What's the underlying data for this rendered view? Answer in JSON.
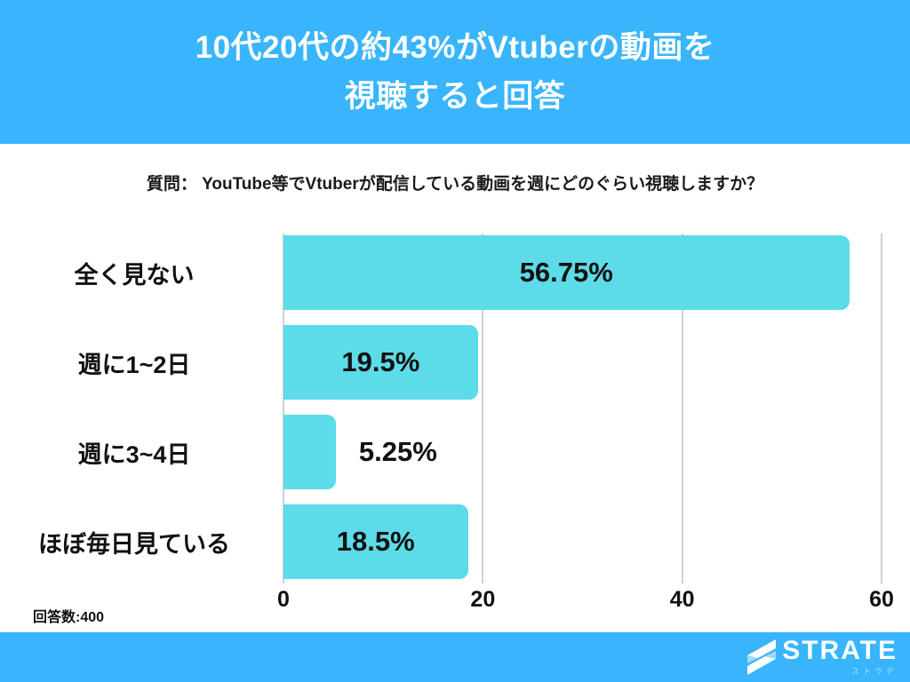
{
  "header": {
    "title_line1": "10代20代の約43%がVtuberの動画を",
    "title_line2": "視聴すると回答",
    "bg_color": "#38b5fc",
    "text_color": "#ffffff"
  },
  "question": {
    "text": "質問： YouTube等でVtuberが配信している動画を週にどのぐらい視聴しますか？"
  },
  "chart_data": {
    "type": "bar",
    "orientation": "horizontal",
    "categories": [
      "全く見ない",
      "週に1~2日",
      "週に3~4日",
      "ほぼ毎日見ている"
    ],
    "values": [
      56.75,
      19.5,
      5.25,
      18.5
    ],
    "value_labels": [
      "56.75%",
      "19.5%",
      "5.25%",
      "18.5%"
    ],
    "xlim": [
      0,
      60
    ],
    "xticks": [
      0,
      20,
      40,
      60
    ],
    "grid": true,
    "legend": false,
    "bar_color": "#5cdbe8",
    "gridline_color": "#cfcfcf"
  },
  "footnote": {
    "text": "回答数:400"
  },
  "footer": {
    "bg_color": "#38b5fc",
    "logo_text": "STRATE",
    "logo_subtext": "ストラテ",
    "logo_accent_color": "#9fd9f9"
  }
}
